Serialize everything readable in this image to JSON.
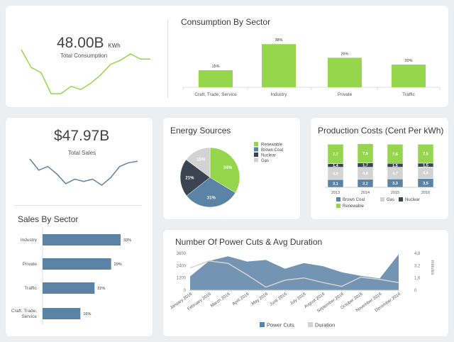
{
  "consumption_card": {
    "value": "48.00B",
    "unit": "KWh",
    "label": "Total Consumption",
    "spark": [
      72,
      55,
      50,
      30,
      30,
      37,
      34,
      40,
      48,
      58,
      62,
      68,
      63,
      63
    ]
  },
  "sector_chart": {
    "title": "Consumption By Sector",
    "chart_data": {
      "type": "bar",
      "categories": [
        "Craft, Trade, Service",
        "Industry",
        "Private",
        "Traffic"
      ],
      "values": [
        15,
        38,
        26,
        20
      ],
      "value_labels": [
        "15%",
        "38%",
        "26%",
        "20%"
      ],
      "color": "#96d64c"
    }
  },
  "sales_card": {
    "value": "$47.97B",
    "label": "Total Sales",
    "spark": [
      45,
      30,
      35,
      25,
      12,
      18,
      15,
      18,
      10,
      20,
      35,
      40,
      42
    ]
  },
  "sales_sector": {
    "title": "Sales By Sector",
    "chart_data": {
      "type": "bar",
      "orientation": "horizontal",
      "categories": [
        "Industry",
        "Private",
        "Traffic",
        "Craft, Trade,\nService"
      ],
      "values": [
        33,
        29,
        22,
        16
      ],
      "value_labels": [
        "33%",
        "29%",
        "22%",
        "16%"
      ],
      "color": "#5b83a6"
    }
  },
  "energy_sources": {
    "title": "Energy Sources",
    "chart_data": {
      "type": "pie",
      "slices": [
        {
          "name": "Renewable",
          "value": 34,
          "label": "34%",
          "color": "#96d64c"
        },
        {
          "name": "Brown Coal",
          "value": 31,
          "label": "31%",
          "color": "#5b83a6"
        },
        {
          "name": "Nuclear",
          "value": 21,
          "label": "21%",
          "color": "#3a4551"
        },
        {
          "name": "Gas",
          "value": 15,
          "label": "15%",
          "color": "#d3d3d3"
        }
      ]
    }
  },
  "production_costs": {
    "title": "Production Costs (Cent Per kWh)",
    "chart_data": {
      "type": "bar",
      "stacked": true,
      "categories": [
        "2013",
        "2014",
        "2015",
        "2016"
      ],
      "series": [
        {
          "name": "Brown Coal",
          "color": "#5b83a6",
          "values": [
            3.1,
            3.2,
            3.3,
            3.5
          ]
        },
        {
          "name": "Gas",
          "color": "#d3d3d3",
          "values": [
            4.9,
            4.8,
            4.7,
            4.6
          ]
        },
        {
          "name": "Nuclear",
          "color": "#3a4551",
          "values": [
            1.4,
            1.7,
            1.5,
            1.5
          ]
        },
        {
          "name": "Renewable",
          "color": "#96d64c",
          "values": [
            7.7,
            7.6,
            7.6,
            7.5
          ]
        }
      ],
      "value_labels": [
        [
          "3,1",
          "3,2",
          "3,3",
          "3,5"
        ],
        [
          "4,9",
          "4,8",
          "4,7",
          "4,6"
        ],
        [
          "1,4",
          "1,7",
          "1,5",
          "1,5"
        ],
        [
          "7,7",
          "7,6",
          "7,6",
          "7,5"
        ]
      ]
    }
  },
  "power_cuts": {
    "title": "Number Of Power Cuts & Avg Duration",
    "chart_data": {
      "type": "area",
      "categories": [
        "January 2016",
        "February 2016",
        "March 2016",
        "April 2016",
        "May 2016",
        "June 2016",
        "July 2016",
        "August 2016",
        "September 2016",
        "October 2016",
        "November 2016",
        "December 2016"
      ],
      "series": [
        {
          "name": "Power Cuts",
          "color": "#5b83a6",
          "values": [
            1350,
            2850,
            3300,
            2800,
            2950,
            2100,
            2650,
            2350,
            1750,
            1400,
            1150,
            3500
          ]
        },
        {
          "name": "Duration",
          "color": "#d3d3d3",
          "values": [
            2.9,
            3.8,
            3.5,
            2.0,
            0.4,
            1.3,
            1.6,
            1.0,
            0.5,
            1.7,
            1.4,
            1.0
          ]
        }
      ],
      "yleft_ticks": [
        "0",
        "1200",
        "2400",
        "3600"
      ],
      "yleft_range": [
        0,
        3600
      ],
      "yright_ticks": [
        "0",
        "1,6",
        "3,2",
        "4,8"
      ],
      "yright_range": [
        0,
        4.8
      ],
      "yright_label": "minutes"
    }
  }
}
